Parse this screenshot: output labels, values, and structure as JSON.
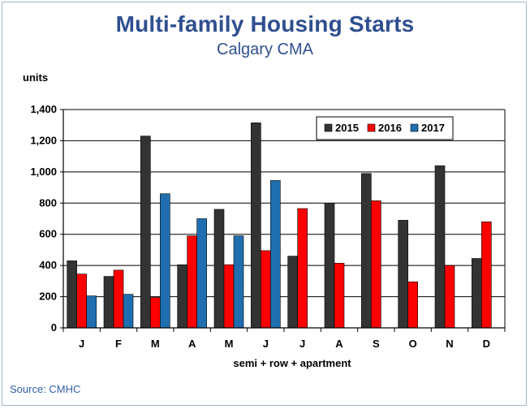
{
  "header": {
    "title": "Multi-family Housing Starts",
    "subtitle": "Calgary CMA"
  },
  "footer": {
    "source": "Source: CMHC"
  },
  "colors": {
    "title": "#2f4f8f",
    "source": "#2f5ea8",
    "border": "#9fb4cf"
  },
  "chart_data": {
    "type": "bar",
    "title": "Multi-family Housing Starts",
    "subtitle": "Calgary CMA",
    "ylabel": "units",
    "xlabel": "semi + row + apartment",
    "ylim": [
      0,
      1400
    ],
    "yticks": [
      0,
      200,
      400,
      600,
      800,
      1000,
      1200,
      1400
    ],
    "ytick_labels": [
      "0",
      "200",
      "400",
      "600",
      "800",
      "1,000",
      "1,200",
      "1,400"
    ],
    "grid": true,
    "legend_position": "top-right",
    "categories": [
      "J",
      "F",
      "M",
      "A",
      "M",
      "J",
      "J",
      "A",
      "S",
      "O",
      "N",
      "D"
    ],
    "series": [
      {
        "name": "2015",
        "color": "#333333",
        "values": [
          430,
          330,
          1230,
          405,
          760,
          1315,
          460,
          800,
          990,
          690,
          1040,
          445
        ]
      },
      {
        "name": "2016",
        "color": "#ff0000",
        "values": [
          345,
          370,
          195,
          590,
          405,
          495,
          765,
          415,
          815,
          295,
          400,
          680
        ]
      },
      {
        "name": "2017",
        "color": "#1f6fb0",
        "values": [
          205,
          215,
          860,
          700,
          590,
          945,
          null,
          null,
          null,
          null,
          null,
          null
        ]
      }
    ]
  }
}
